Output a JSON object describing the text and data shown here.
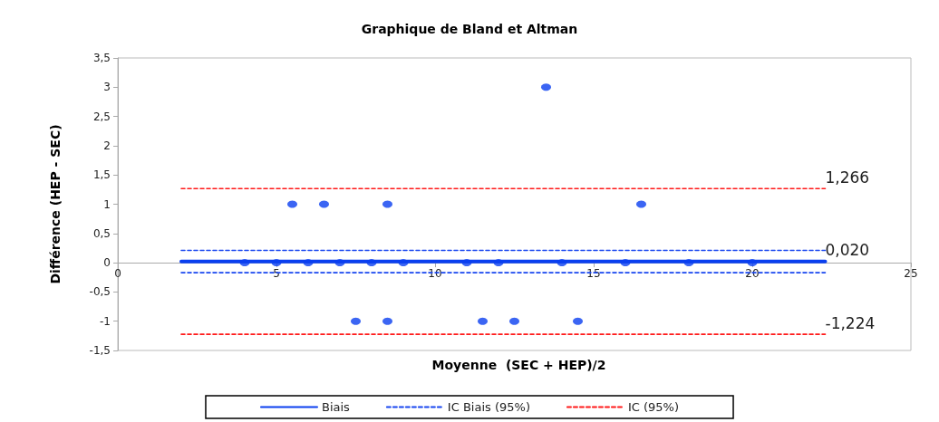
{
  "chart_data": {
    "type": "scatter",
    "title": "Graphique de Bland et Altman",
    "xlabel": "Moyenne  (SEC + HEP)/2",
    "ylabel": "Différence (HEP - SEC)",
    "series": [
      {
        "color": "#0a3ff0",
        "marker": "circle",
        "x": [
          4,
          5,
          6,
          7,
          8,
          9,
          11,
          12,
          14,
          16,
          18,
          20,
          5.5,
          6.5,
          8.5,
          16.5,
          13.5,
          7.5,
          8.5,
          11.5,
          12.5,
          14.5
        ],
        "values": [
          0,
          0,
          0,
          0,
          0,
          0,
          0,
          0,
          0,
          0,
          0,
          0,
          1,
          1,
          1,
          1,
          3,
          -1,
          -1,
          -1,
          -1,
          -1
        ]
      },
      {
        "type": "line",
        "name": "Biais",
        "color": "#0a3ff0",
        "marker": "none",
        "line_style": "solid",
        "x": [
          2,
          22.3
        ],
        "values": [
          0.02,
          0.02
        ],
        "value_labels": [
          null,
          "0,020"
        ]
      },
      {
        "type": "line",
        "name": "IC Biais (95%)",
        "color": "#1846f0",
        "marker": "none",
        "line_style": "dashed",
        "x": [
          2,
          22.3
        ],
        "values": [
          0.21,
          0.21
        ]
      },
      {
        "type": "line",
        "color": "#1846f0",
        "marker": "none",
        "line_style": "dashed",
        "x": [
          2,
          22.3
        ],
        "values": [
          -0.17,
          -0.17
        ]
      },
      {
        "type": "line",
        "name": "IC (95%)",
        "color": "#ff1a1a",
        "marker": "none",
        "line_style": "dashed",
        "x": [
          2,
          22.3
        ],
        "values": [
          1.266,
          1.266
        ],
        "value_labels": [
          null,
          "1,266"
        ]
      },
      {
        "type": "line",
        "color": "#ff1a1a",
        "marker": "none",
        "line_style": "dashed",
        "x": [
          2,
          22.3
        ],
        "values": [
          -1.224,
          -1.224
        ],
        "value_labels": [
          null,
          "-1,224"
        ]
      }
    ],
    "xlim": [
      0,
      25
    ],
    "xticks": [
      0,
      5,
      10,
      15,
      20,
      25
    ],
    "ylim": [
      -1.5,
      3.5
    ],
    "yticks": [
      {
        "value": -1.5,
        "label": "-1,5"
      },
      -1,
      {
        "value": -0.5,
        "label": "-0,5"
      },
      0,
      {
        "value": 0.5,
        "label": "0,5"
      },
      1,
      {
        "value": 1.5,
        "label": "1,5"
      },
      2,
      {
        "value": 2.5,
        "label": "2,5"
      },
      3,
      {
        "value": 3.5,
        "label": "3,5"
      }
    ],
    "legend": "bottom"
  }
}
